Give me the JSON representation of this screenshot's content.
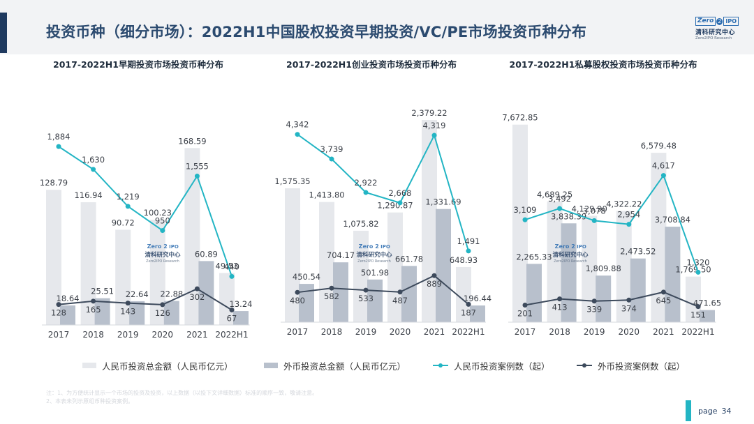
{
  "page_title": "投资币种（细分市场）：2022H1中国股权投资早期投资/VC/PE市场投资币种分布",
  "logo": {
    "zero": "Zero",
    "two": "2",
    "ipo": "IPO",
    "cn": "清科研究中心",
    "en": "Zero2IPO Research"
  },
  "watermark": {
    "zero": "Zero",
    "two": "2",
    "ipo": "IPO",
    "cn": "清科研究中心",
    "en": "Zero2IPO Research"
  },
  "legend": {
    "rmb_amount": "人民币投资总金额（人民币亿元）",
    "fx_amount": "外币投资总金额（人民币亿元）",
    "rmb_cases": "人民币投资案例数（起）",
    "fx_cases": "外币投资案例数（起）"
  },
  "notes": [
    "注：1、为方便统计显示一个市场的投资及投资，以上数据（以投下文详细数据）标准的顺序一致，敬请注意。",
    "    2、本表未列示原组币种投资案例。"
  ],
  "page": {
    "label": "page",
    "number": "34"
  },
  "colors": {
    "rmb_bar": "#e6e8ec",
    "fx_bar": "#b8c0cc",
    "rmb_line": "#23b5c4",
    "fx_line": "#3d4a5c",
    "title": "#2b4a6f"
  },
  "chart_data": [
    {
      "type": "bar",
      "title": "2017-2022H1早期投资市场投资币种分布",
      "categories": [
        "2017",
        "2018",
        "2019",
        "2020",
        "2021",
        "2022H1"
      ],
      "series": [
        {
          "name": "人民币投资总金额（人民币亿元）",
          "kind": "bar",
          "values": [
            128.79,
            116.94,
            90.72,
            100.23,
            168.59,
            49.53
          ],
          "labels": [
            "128.79",
            "116.94",
            "90.72",
            "100.23",
            "168.59",
            "49.53"
          ]
        },
        {
          "name": "外币投资总金额（人民币亿元）",
          "kind": "bar",
          "values": [
            18.64,
            25.51,
            22.64,
            22.88,
            60.89,
            13.24
          ],
          "labels": [
            "18.64",
            "25.51",
            "22.64",
            "22.88",
            "60.89",
            "13.24"
          ]
        },
        {
          "name": "人民币投资案例数（起）",
          "kind": "line",
          "values": [
            1884,
            1630,
            1219,
            950,
            1555,
            440
          ],
          "labels": [
            "1,884",
            "1,630",
            "1,219",
            "950",
            "1,555",
            "440"
          ]
        },
        {
          "name": "外币投资案例数（起）",
          "kind": "line",
          "values": [
            128,
            165,
            143,
            126,
            302,
            67
          ],
          "labels": [
            "128",
            "165",
            "143",
            "126",
            "302",
            "67"
          ]
        }
      ],
      "bar_ylim": [
        0,
        210
      ],
      "line_ylim": [
        -100,
        2350
      ]
    },
    {
      "type": "bar",
      "title": "2017-2022H1创业投资市场投资币种分布",
      "categories": [
        "2017",
        "2018",
        "2019",
        "2020",
        "2021",
        "2022H1"
      ],
      "series": [
        {
          "name": "人民币投资总金额（人民币亿元）",
          "kind": "bar",
          "values": [
            1575.35,
            1413.8,
            1075.82,
            1290.87,
            2379.22,
            648.93
          ],
          "labels": [
            "1,575.35",
            "1,413.80",
            "1,075.82",
            "1,290.87",
            "2,379.22",
            "648.93"
          ]
        },
        {
          "name": "外币投资总金额（人民币亿元）",
          "kind": "bar",
          "values": [
            450.54,
            704.17,
            501.98,
            661.78,
            1331.69,
            196.44
          ],
          "labels": [
            "450.54",
            "704.17",
            "501.98",
            "661.78",
            "1,331.69",
            "196.44"
          ]
        },
        {
          "name": "人民币投资案例数（起）",
          "kind": "line",
          "values": [
            4342,
            3739,
            2922,
            2668,
            4319,
            1491
          ],
          "labels": [
            "4,342",
            "3,739",
            "2,922",
            "2,668",
            "4,319",
            "1,491"
          ]
        },
        {
          "name": "外币投资案例数（起）",
          "kind": "line",
          "values": [
            480,
            582,
            533,
            487,
            889,
            187
          ],
          "labels": [
            "480",
            "582",
            "533",
            "487",
            "889",
            "187"
          ]
        }
      ],
      "bar_ylim": [
        0,
        2560
      ],
      "line_ylim": [
        -250,
        5070
      ]
    },
    {
      "type": "bar",
      "title": "2017-2022H1私募股权投资市场投资币种分布",
      "categories": [
        "2017",
        "2018",
        "2019",
        "2020",
        "2021",
        "2022H1"
      ],
      "series": [
        {
          "name": "人民币投资总金额（人民币亿元）",
          "kind": "bar",
          "values": [
            7672.85,
            4689.25,
            4129.9,
            4322.22,
            6579.48,
            1769.5
          ],
          "labels": [
            "7,672.85",
            "4,689.25",
            "4,129.90",
            "4,322.22",
            "6,579.48",
            "1,769.50"
          ]
        },
        {
          "name": "外币投资总金额（人民币亿元）",
          "kind": "bar",
          "values": [
            2265.33,
            3838.39,
            1809.88,
            2473.52,
            3708.84,
            471.65
          ],
          "labels": [
            "2,265.33",
            "3,838.39",
            "1,809.88",
            "2,473.52",
            "3,708.84",
            "471.65"
          ]
        },
        {
          "name": "人民币投资案例数（起）",
          "kind": "line",
          "values": [
            3109,
            3492,
            3078,
            2954,
            4617,
            1320
          ],
          "labels": [
            "3,109",
            "3,492",
            "3,078",
            "2,954",
            "4,617",
            "1,320"
          ]
        },
        {
          "name": "外币投资案例数（起）",
          "kind": "line",
          "values": [
            201,
            413,
            339,
            374,
            645,
            151
          ],
          "labels": [
            "201",
            "413",
            "339",
            "374",
            "645",
            "151"
          ]
        }
      ],
      "bar_ylim": [
        0,
        8450
      ],
      "line_ylim": [
        -380,
        7030
      ]
    }
  ]
}
